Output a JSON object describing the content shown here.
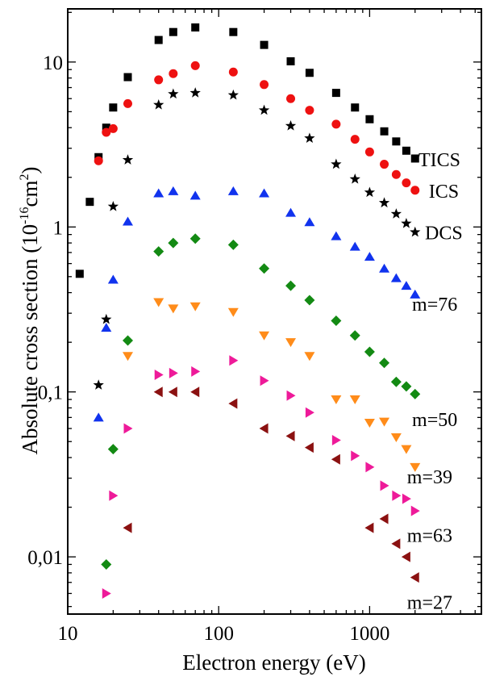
{
  "chart_data": {
    "type": "scatter",
    "title": "",
    "xlabel": "Electron energy (eV)",
    "ylabel": {
      "prefix": "Absolute cross section (10",
      "exp1": "-16",
      "mid": "cm",
      "exp2": "2",
      "suffix": ")"
    },
    "x_scale": "log",
    "y_scale": "log",
    "xlim": [
      10,
      5500
    ],
    "ylim": [
      0.0045,
      21
    ],
    "x_ticks": [
      {
        "value": 10,
        "label": "10"
      },
      {
        "value": 100,
        "label": "100"
      },
      {
        "value": 1000,
        "label": "1000"
      }
    ],
    "y_ticks": [
      {
        "value": 0.01,
        "label": "0,01"
      },
      {
        "value": 0.1,
        "label": "0,1"
      },
      {
        "value": 1,
        "label": "1"
      },
      {
        "value": 10,
        "label": "10"
      }
    ],
    "grid": false,
    "series": [
      {
        "name": "TICS",
        "marker": "square",
        "color": "#000000",
        "label_at": {
          "x": 2900,
          "y": 2.55
        },
        "x": [
          12,
          14,
          16,
          18,
          20,
          25,
          40,
          50,
          70,
          125,
          200,
          300,
          400,
          600,
          800,
          1000,
          1250,
          1500,
          1750,
          2000
        ],
        "y": [
          0.52,
          1.42,
          2.65,
          4.0,
          5.3,
          8.1,
          13.6,
          15.2,
          16.2,
          15.2,
          12.7,
          10.1,
          8.6,
          6.5,
          5.3,
          4.5,
          3.8,
          3.3,
          2.9,
          2.6
        ]
      },
      {
        "name": "ICS",
        "marker": "circle",
        "color": "#ee1111",
        "label_at": {
          "x": 3100,
          "y": 1.65
        },
        "x": [
          16,
          18,
          20,
          25,
          40,
          50,
          70,
          125,
          200,
          300,
          400,
          600,
          800,
          1000,
          1250,
          1500,
          1750,
          2000
        ],
        "y": [
          2.52,
          3.75,
          3.95,
          5.6,
          7.8,
          8.5,
          9.5,
          8.7,
          7.3,
          6.0,
          5.1,
          4.2,
          3.4,
          2.85,
          2.4,
          2.08,
          1.85,
          1.67
        ]
      },
      {
        "name": "DCS",
        "marker": "star",
        "color": "#000000",
        "label_at": {
          "x": 3100,
          "y": 0.92
        },
        "x": [
          16,
          18,
          20,
          25,
          40,
          50,
          70,
          125,
          200,
          300,
          400,
          600,
          800,
          1000,
          1250,
          1500,
          1750,
          2000
        ],
        "y": [
          0.11,
          0.275,
          1.33,
          2.55,
          5.5,
          6.4,
          6.5,
          6.3,
          5.1,
          4.1,
          3.45,
          2.4,
          1.95,
          1.62,
          1.4,
          1.2,
          1.05,
          0.93
        ]
      },
      {
        "name": "m=76",
        "marker": "triangle-up",
        "color": "#1133ee",
        "label_at": {
          "x": 2700,
          "y": 0.34
        },
        "x": [
          16,
          18,
          20,
          25,
          40,
          50,
          70,
          125,
          200,
          300,
          400,
          600,
          800,
          1000,
          1250,
          1500,
          1750,
          2000
        ],
        "y": [
          0.07,
          0.245,
          0.48,
          1.08,
          1.6,
          1.65,
          1.55,
          1.65,
          1.6,
          1.22,
          1.07,
          0.88,
          0.76,
          0.66,
          0.56,
          0.49,
          0.44,
          0.39
        ]
      },
      {
        "name": "m=50",
        "marker": "diamond",
        "color": "#138a13",
        "label_at": {
          "x": 2700,
          "y": 0.068
        },
        "x": [
          18,
          20,
          25,
          40,
          50,
          70,
          125,
          200,
          300,
          400,
          600,
          800,
          1000,
          1250,
          1500,
          1750,
          2000
        ],
        "y": [
          0.009,
          0.045,
          0.205,
          0.71,
          0.8,
          0.85,
          0.78,
          0.56,
          0.44,
          0.36,
          0.27,
          0.22,
          0.175,
          0.15,
          0.115,
          0.108,
          0.097
        ]
      },
      {
        "name": "m=39",
        "marker": "triangle-down",
        "color": "#ff8c1a",
        "label_at": {
          "x": 2500,
          "y": 0.0305
        },
        "x": [
          25,
          40,
          50,
          70,
          125,
          200,
          300,
          400,
          600,
          800,
          1000,
          1250,
          1500,
          1750,
          2000
        ],
        "y": [
          0.165,
          0.35,
          0.32,
          0.33,
          0.305,
          0.22,
          0.2,
          0.165,
          0.09,
          0.09,
          0.065,
          0.066,
          0.053,
          0.045,
          0.035
        ]
      },
      {
        "name": "m=63",
        "marker": "triangle-right",
        "color": "#ee1a99",
        "label_at": {
          "x": 2500,
          "y": 0.0135
        },
        "x": [
          18,
          20,
          25,
          40,
          50,
          70,
          125,
          200,
          300,
          400,
          600,
          800,
          1000,
          1250,
          1500,
          1750,
          2000
        ],
        "y": [
          0.006,
          0.0235,
          0.06,
          0.127,
          0.13,
          0.133,
          0.155,
          0.117,
          0.095,
          0.075,
          0.051,
          0.041,
          0.035,
          0.027,
          0.0235,
          0.0225,
          0.019
        ]
      },
      {
        "name": "m=27",
        "marker": "triangle-left",
        "color": "#8b1111",
        "label_at": {
          "x": 2500,
          "y": 0.0053
        },
        "x": [
          25,
          40,
          50,
          70,
          125,
          200,
          300,
          400,
          600,
          1000,
          1250,
          1500,
          1750,
          2000
        ],
        "y": [
          0.015,
          0.1,
          0.1,
          0.1,
          0.085,
          0.06,
          0.054,
          0.046,
          0.039,
          0.015,
          0.017,
          0.012,
          0.01,
          0.0075
        ]
      }
    ]
  }
}
